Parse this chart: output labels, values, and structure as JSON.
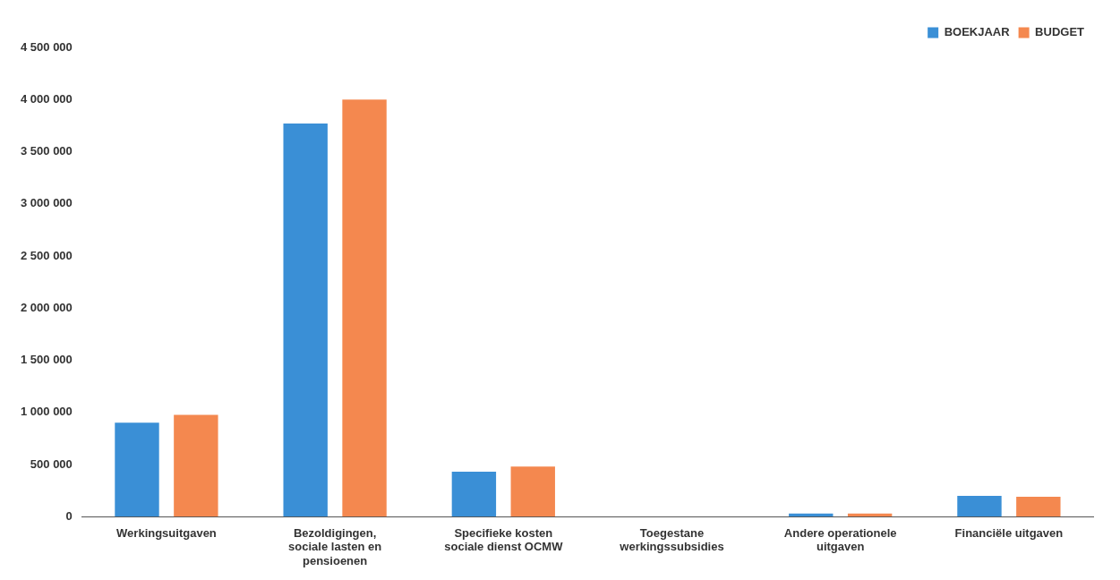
{
  "chart_data": {
    "type": "bar",
    "categories": [
      "Werkingsuitgaven",
      "Bezoldigingen, sociale lasten en pensioenen",
      "Specifieke kosten sociale dienst OCMW",
      "Toegestane werkingssubsidies",
      "Andere operationele uitgaven",
      "Financiële uitgaven"
    ],
    "series": [
      {
        "name": "BOEKJAAR",
        "color": "#3a8fd6",
        "values": [
          900000,
          3770000,
          430000,
          0,
          30000,
          200000
        ]
      },
      {
        "name": "BUDGET",
        "color": "#f4884f",
        "values": [
          975000,
          4000000,
          480000,
          0,
          30000,
          190000
        ]
      }
    ],
    "ylim": [
      0,
      4500000
    ],
    "yticks": [
      {
        "value": 0,
        "label": "0"
      },
      {
        "value": 500000,
        "label": "500 000"
      },
      {
        "value": 1000000,
        "label": "1 000 000"
      },
      {
        "value": 1500000,
        "label": "1 500 000"
      },
      {
        "value": 2000000,
        "label": "2 000 000"
      },
      {
        "value": 2500000,
        "label": "2 500 000"
      },
      {
        "value": 3000000,
        "label": "3 000 000"
      },
      {
        "value": 3500000,
        "label": "3 500 000"
      },
      {
        "value": 4000000,
        "label": "4 000 000"
      },
      {
        "value": 4500000,
        "label": "4 500 000"
      }
    ],
    "legend": "top right"
  }
}
